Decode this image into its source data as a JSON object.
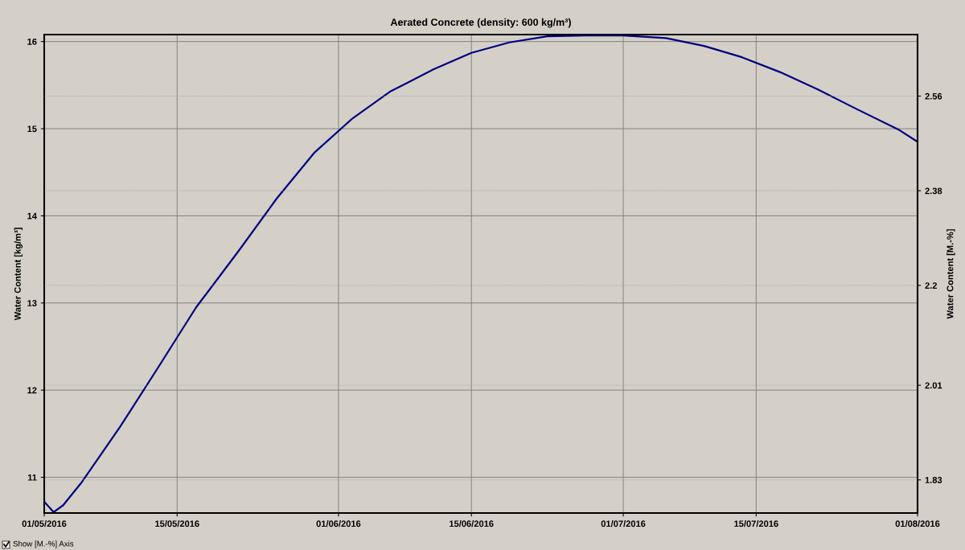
{
  "chart_data": {
    "type": "line",
    "title": "Aerated Concrete (density: 600 kg/m³)",
    "ylabel": "Water Content [kg/m³]",
    "y2label": "Water Content [M.-%]",
    "x": [
      "2016-05-01",
      "2016-05-02",
      "2016-05-03",
      "2016-05-05",
      "2016-05-09",
      "2016-05-13",
      "2016-05-17",
      "2016-05-21T12:00",
      "2016-05-25T12:00",
      "2016-05-29T12:00",
      "2016-06-02T12:00",
      "2016-06-06T12:00",
      "2016-06-11",
      "2016-06-15",
      "2016-06-19",
      "2016-06-23",
      "2016-06-27",
      "2016-07-01",
      "2016-07-05T12:00",
      "2016-07-09T12:00",
      "2016-07-13T12:00",
      "2016-07-17T12:00",
      "2016-07-21T12:00",
      "2016-07-25T12:00",
      "2016-07-30",
      "2016-08-01"
    ],
    "series": [
      {
        "color": "#000080",
        "values": [
          10.72,
          10.6,
          10.68,
          10.95,
          11.58,
          12.26,
          12.95,
          13.6,
          14.2,
          14.73,
          15.12,
          15.43,
          15.68,
          15.87,
          15.99,
          16.06,
          16.07,
          16.07,
          16.04,
          15.95,
          15.82,
          15.65,
          15.45,
          15.23,
          14.99,
          14.85
        ]
      }
    ],
    "xlim": [
      "2016-05-01",
      "2016-08-01"
    ],
    "xticks": [
      {
        "value": "2016-05-01",
        "label": "01/05/2016"
      },
      {
        "value": "2016-05-15",
        "label": "15/05/2016"
      },
      {
        "value": "2016-06-01",
        "label": "01/06/2016"
      },
      {
        "value": "2016-06-15",
        "label": "15/06/2016"
      },
      {
        "value": "2016-07-01",
        "label": "01/07/2016"
      },
      {
        "value": "2016-07-15",
        "label": "15/07/2016"
      },
      {
        "value": "2016-08-01",
        "label": "01/08/2016"
      }
    ],
    "ylim": [
      10.59,
      16.08
    ],
    "yticks": [
      11,
      12,
      13,
      14,
      15,
      16
    ],
    "y2lim": [
      1.767,
      2.677
    ],
    "y2ticks": [
      1.83,
      2.01,
      2.2,
      2.38,
      2.56
    ],
    "grid": true,
    "marker": "none",
    "line_style": "solid",
    "annotations": [
      "Show [M.-%] Axis"
    ]
  }
}
